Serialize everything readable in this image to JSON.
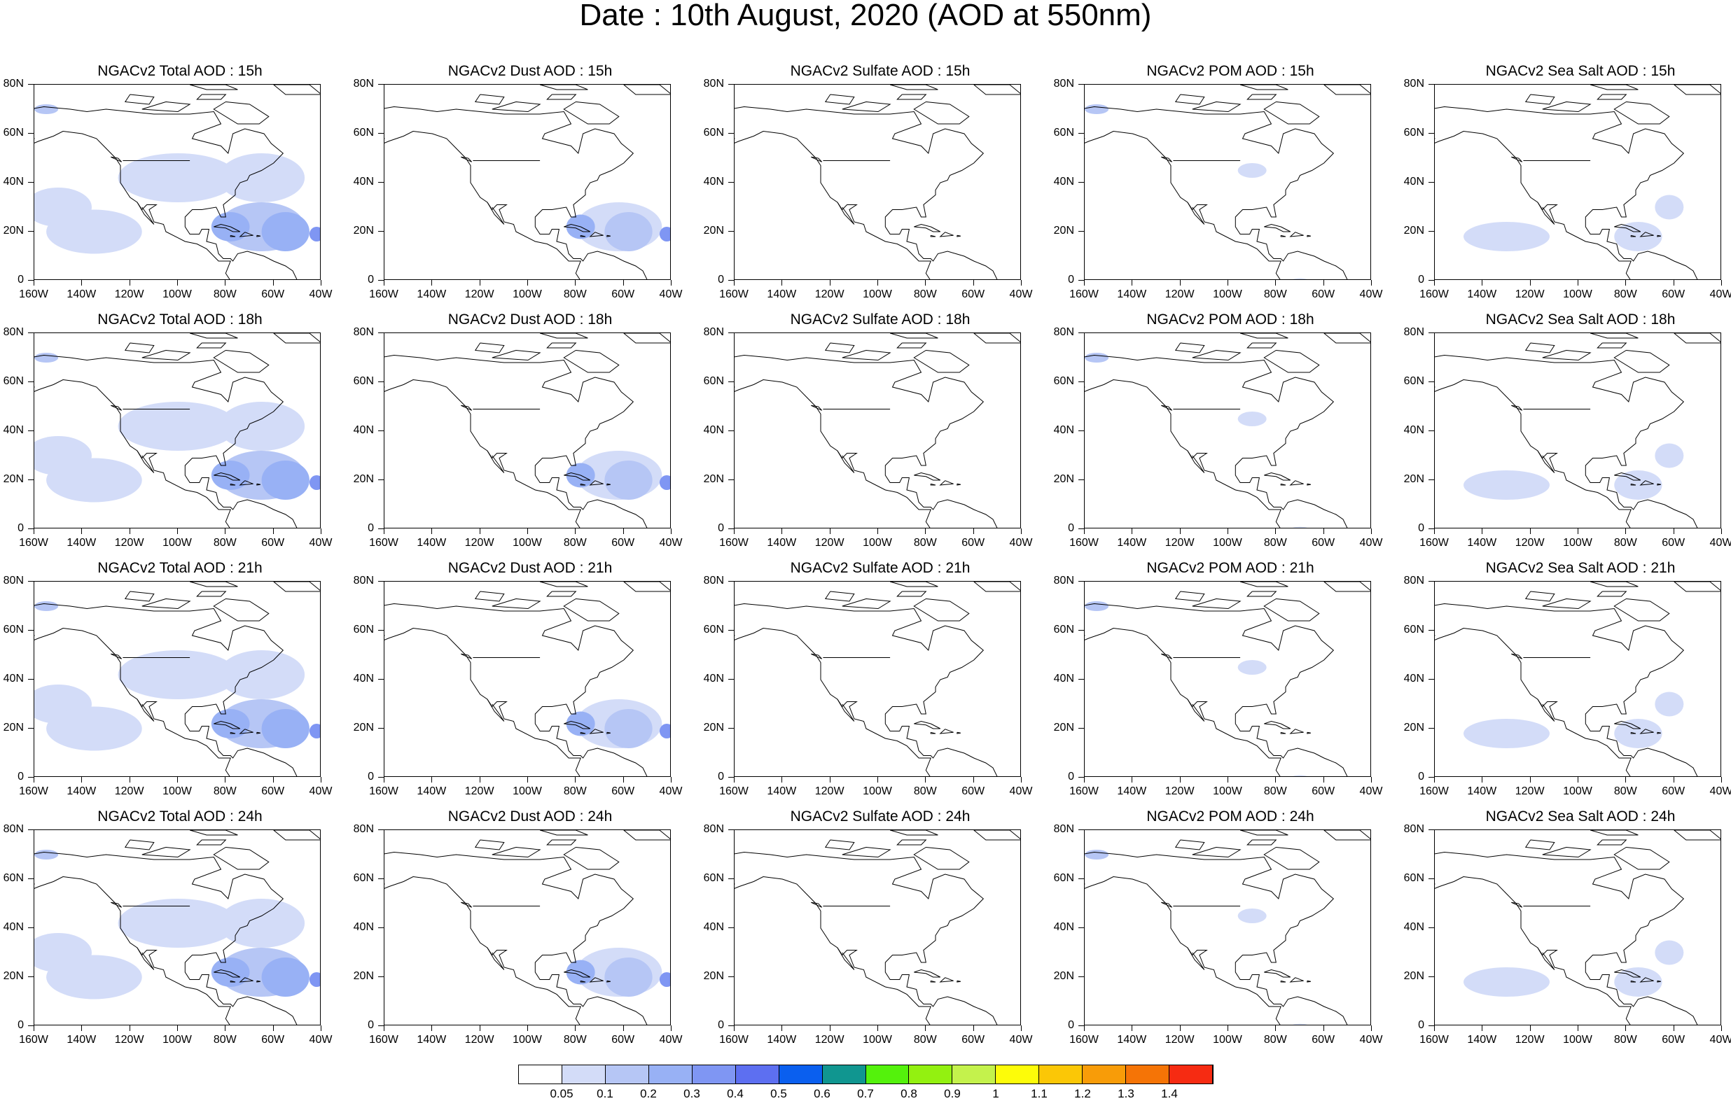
{
  "title": "Date : 10th August, 2020 (AOD at 550nm)",
  "rows": [
    {
      "hour": "15h",
      "panels": [
        "NGACv2 Total AOD : 15h",
        "NGACv2 Dust AOD : 15h",
        "NGACv2 Sulfate AOD : 15h",
        "NGACv2 POM AOD : 15h",
        "NGACv2 Sea Salt AOD : 15h"
      ]
    },
    {
      "hour": "18h",
      "panels": [
        "NGACv2 Total AOD : 18h",
        "NGACv2 Dust AOD : 18h",
        "NGACv2 Sulfate AOD : 18h",
        "NGACv2 POM AOD : 18h",
        "NGACv2 Sea Salt AOD : 18h"
      ]
    },
    {
      "hour": "21h",
      "panels": [
        "NGACv2 Total AOD : 21h",
        "NGACv2 Dust AOD : 21h",
        "NGACv2 Sulfate AOD : 21h",
        "NGACv2 POM AOD : 21h",
        "NGACv2 Sea Salt AOD : 21h"
      ]
    },
    {
      "hour": "24h",
      "panels": [
        "NGACv2 Total AOD : 24h",
        "NGACv2 Dust AOD : 24h",
        "NGACv2 Sulfate AOD : 24h",
        "NGACv2 POM AOD : 24h",
        "NGACv2 Sea Salt  AOD : 24h"
      ]
    }
  ],
  "species": [
    "total",
    "dust",
    "sulfate",
    "pom",
    "seasalt"
  ],
  "y_ticks": [
    "80N",
    "60N",
    "40N",
    "20N",
    "0"
  ],
  "x_ticks": [
    "160W",
    "140W",
    "120W",
    "100W",
    "80W",
    "60W",
    "40W"
  ],
  "colorbar": {
    "levels": [
      "0.05",
      "0.1",
      "0.2",
      "0.3",
      "0.4",
      "0.5",
      "0.6",
      "0.7",
      "0.8",
      "0.9",
      "1",
      "1.1",
      "1.2",
      "1.3",
      "1.4"
    ],
    "colors": [
      "#ffffff",
      "#d3dcf8",
      "#b6c6f5",
      "#98b1f5",
      "#7f96f3",
      "#5d6ff1",
      "#0a5fef",
      "#109690",
      "#54f20c",
      "#93f110",
      "#c4f24c",
      "#fdfc09",
      "#fbc706",
      "#f89c08",
      "#f57406",
      "#f62b12"
    ]
  }
}
